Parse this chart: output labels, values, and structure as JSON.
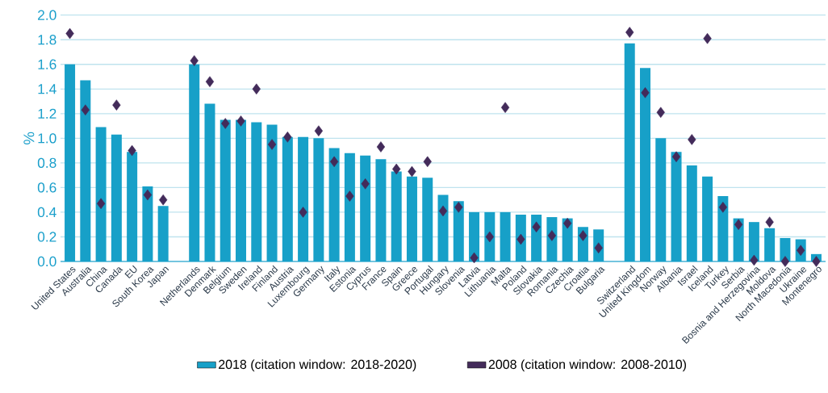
{
  "chart_data": {
    "type": "bar",
    "ylabel": "%",
    "categories": [
      "United States",
      "Australia",
      "China",
      "Canada",
      "EU",
      "South Korea",
      "Japan",
      null,
      "Netherlands",
      "Denmark",
      "Belgium",
      "Sweden",
      "Ireland",
      "Finland",
      "Austria",
      "Luxembourg",
      "Germany",
      "Italy",
      "Estonia",
      "Cyprus",
      "France",
      "Spain",
      "Greece",
      "Portugal",
      "Hungary",
      "Slovenia",
      "Latvia",
      "Lithuania",
      "Malta",
      "Poland",
      "Slovakia",
      "Romania",
      "Czechia",
      "Croatia",
      "Bulgaria",
      null,
      "Switzerland",
      "United Kingdom",
      "Norway",
      "Albania",
      "Israel",
      "Iceland",
      "Turkey",
      "Serbia",
      "Bosnia and Herzegovina",
      "Moldova",
      "North Macedonia",
      "Ukraine",
      "Montenegro"
    ],
    "series": [
      {
        "name": "2018 (citation window: 2018-2020)",
        "color": "#17a0c8",
        "values": [
          1.6,
          1.47,
          1.09,
          1.03,
          0.89,
          0.61,
          0.45,
          null,
          1.6,
          1.28,
          1.15,
          1.15,
          1.13,
          1.11,
          1.01,
          1.01,
          1.0,
          0.92,
          0.88,
          0.86,
          0.83,
          0.73,
          0.69,
          0.68,
          0.54,
          0.49,
          0.4,
          0.4,
          0.4,
          0.38,
          0.38,
          0.36,
          0.35,
          0.28,
          0.26,
          null,
          1.77,
          1.57,
          1.0,
          0.89,
          0.78,
          0.69,
          0.53,
          0.35,
          0.32,
          0.27,
          0.19,
          0.18,
          0.06
        ]
      },
      {
        "name": "2008 (citation window: 2008-2010)",
        "type": "scatter",
        "marker": "diamond",
        "color": "#432b5a",
        "values": [
          1.85,
          1.23,
          0.47,
          1.27,
          0.9,
          0.54,
          0.5,
          null,
          1.63,
          1.46,
          1.12,
          1.14,
          1.4,
          0.95,
          1.01,
          0.4,
          1.06,
          0.81,
          0.53,
          0.63,
          0.93,
          0.75,
          0.73,
          0.81,
          0.41,
          0.44,
          0.03,
          0.2,
          1.25,
          0.18,
          0.28,
          0.21,
          0.31,
          0.21,
          0.11,
          null,
          1.86,
          1.37,
          1.21,
          0.85,
          0.99,
          1.81,
          0.44,
          0.3,
          0.01,
          0.32,
          0.0,
          0.09,
          0.0
        ]
      }
    ],
    "ylim": [
      0,
      2.0
    ],
    "yticks": [
      {
        "value": 0,
        "label": "0.0"
      },
      0.2,
      0.4,
      0.6,
      0.8,
      {
        "value": 1,
        "label": "1.0"
      },
      1.2,
      1.4,
      1.6,
      1.8,
      {
        "value": 2,
        "label": "2.0"
      }
    ],
    "grid": "y",
    "legend": "bottom"
  }
}
